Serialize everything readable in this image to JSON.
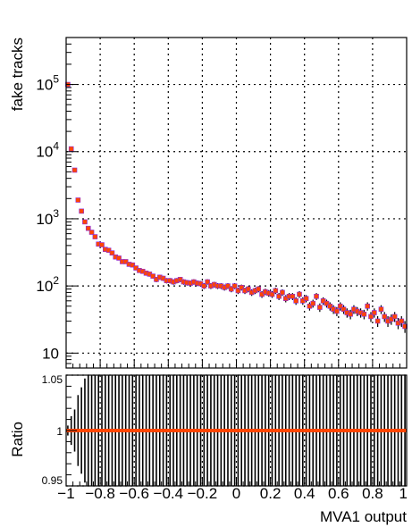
{
  "chart_data": [
    {
      "type": "scatter",
      "title": "",
      "ylabel": "fake tracks",
      "xlabel": "",
      "xlim": [
        -1,
        1
      ],
      "ylim": [
        6,
        500000
      ],
      "yscale": "log",
      "grid": true,
      "ytick_labels": [
        {
          "value": 10,
          "base": "10",
          "exp": ""
        },
        {
          "value": 100,
          "base": "10",
          "exp": "2"
        },
        {
          "value": 1000,
          "base": "10",
          "exp": "3"
        },
        {
          "value": 10000,
          "base": "10",
          "exp": "4"
        },
        {
          "value": 100000,
          "base": "10",
          "exp": "5"
        }
      ],
      "series": [
        {
          "color_marker": "#ff4500",
          "color_reference": "#8a2be2",
          "x": [
            -0.99,
            -0.97,
            -0.95,
            -0.93,
            -0.91,
            -0.89,
            -0.87,
            -0.85,
            -0.83,
            -0.81,
            -0.79,
            -0.77,
            -0.75,
            -0.73,
            -0.71,
            -0.69,
            -0.67,
            -0.65,
            -0.63,
            -0.61,
            -0.59,
            -0.57,
            -0.55,
            -0.53,
            -0.51,
            -0.49,
            -0.47,
            -0.45,
            -0.43,
            -0.41,
            -0.39,
            -0.37,
            -0.35,
            -0.33,
            -0.31,
            -0.29,
            -0.27,
            -0.25,
            -0.23,
            -0.21,
            -0.19,
            -0.17,
            -0.15,
            -0.13,
            -0.11,
            -0.09,
            -0.07,
            -0.05,
            -0.03,
            -0.01,
            0.01,
            0.03,
            0.05,
            0.07,
            0.09,
            0.11,
            0.13,
            0.15,
            0.17,
            0.19,
            0.21,
            0.23,
            0.25,
            0.27,
            0.29,
            0.31,
            0.33,
            0.35,
            0.37,
            0.39,
            0.41,
            0.43,
            0.45,
            0.47,
            0.49,
            0.51,
            0.53,
            0.55,
            0.57,
            0.59,
            0.61,
            0.63,
            0.65,
            0.67,
            0.69,
            0.71,
            0.73,
            0.75,
            0.77,
            0.79,
            0.81,
            0.83,
            0.85,
            0.87,
            0.89,
            0.91,
            0.93,
            0.95,
            0.97,
            0.99
          ],
          "y": [
            100000,
            11000,
            5300,
            1900,
            1300,
            900,
            720,
            630,
            540,
            420,
            410,
            350,
            340,
            310,
            270,
            260,
            230,
            230,
            210,
            205,
            185,
            170,
            165,
            155,
            150,
            140,
            125,
            135,
            130,
            120,
            120,
            115,
            120,
            125,
            115,
            112,
            110,
            115,
            110,
            108,
            100,
            115,
            100,
            105,
            100,
            100,
            95,
            100,
            90,
            100,
            85,
            95,
            85,
            90,
            80,
            85,
            90,
            75,
            82,
            78,
            75,
            85,
            70,
            80,
            65,
            70,
            70,
            60,
            75,
            60,
            65,
            50,
            55,
            70,
            48,
            60,
            55,
            50,
            45,
            42,
            50,
            45,
            40,
            38,
            45,
            42,
            40,
            38,
            50,
            35,
            40,
            30,
            45,
            35,
            30,
            32,
            35,
            28,
            30,
            25
          ]
        }
      ]
    },
    {
      "type": "scatter",
      "title": "",
      "ylabel": "Ratio",
      "xlabel": "MVA1 output",
      "xlim": [
        -1,
        1
      ],
      "ylim": [
        0.95,
        1.05
      ],
      "grid": true,
      "ytick_labels": [
        "0.95",
        "1",
        "1.05"
      ],
      "xtick_labels": [
        "−1",
        "−0.8",
        "−0.6",
        "−0.4",
        "−0.2",
        "0",
        "0.2",
        "0.4",
        "0.6",
        "0.8",
        "1"
      ],
      "series": [
        {
          "color": "#ff4500",
          "x": [
            -0.99,
            -0.97,
            -0.95,
            -0.93,
            -0.91,
            -0.89,
            -0.87,
            -0.85,
            -0.83,
            -0.81,
            -0.79,
            -0.77,
            -0.75,
            -0.73,
            -0.71,
            -0.69,
            -0.67,
            -0.65,
            -0.63,
            -0.61,
            -0.59,
            -0.57,
            -0.55,
            -0.53,
            -0.51,
            -0.49,
            -0.47,
            -0.45,
            -0.43,
            -0.41,
            -0.39,
            -0.37,
            -0.35,
            -0.33,
            -0.31,
            -0.29,
            -0.27,
            -0.25,
            -0.23,
            -0.21,
            -0.19,
            -0.17,
            -0.15,
            -0.13,
            -0.11,
            -0.09,
            -0.07,
            -0.05,
            -0.03,
            -0.01,
            0.01,
            0.03,
            0.05,
            0.07,
            0.09,
            0.11,
            0.13,
            0.15,
            0.17,
            0.19,
            0.21,
            0.23,
            0.25,
            0.27,
            0.29,
            0.31,
            0.33,
            0.35,
            0.37,
            0.39,
            0.41,
            0.43,
            0.45,
            0.47,
            0.49,
            0.51,
            0.53,
            0.55,
            0.57,
            0.59,
            0.61,
            0.63,
            0.65,
            0.67,
            0.69,
            0.71,
            0.73,
            0.75,
            0.77,
            0.79,
            0.81,
            0.83,
            0.85,
            0.87,
            0.89,
            0.91,
            0.93,
            0.95,
            0.97,
            0.99
          ],
          "y_constant": 1.0,
          "errors": [
            0.0045,
            0.013,
            0.019,
            0.032,
            0.039,
            0.047,
            0.053,
            0.056,
            0.061,
            0.069,
            0.07,
            0.076,
            0.077,
            0.08,
            0.086,
            0.088,
            0.093,
            0.093,
            0.098,
            0.099,
            0.104,
            0.108,
            0.11,
            0.114,
            0.115,
            0.12,
            0.126,
            0.122,
            0.124,
            0.129,
            0.129,
            0.132,
            0.129,
            0.126,
            0.132,
            0.134,
            0.135,
            0.132,
            0.135,
            0.136,
            0.141,
            0.132,
            0.141,
            0.138,
            0.141,
            0.141,
            0.145,
            0.141,
            0.149,
            0.141,
            0.153,
            0.145,
            0.153,
            0.149,
            0.158,
            0.153,
            0.149,
            0.163,
            0.156,
            0.16,
            0.163,
            0.153,
            0.169,
            0.158,
            0.175,
            0.169,
            0.169,
            0.183,
            0.163,
            0.183,
            0.175,
            0.2,
            0.191,
            0.169,
            0.204,
            0.183,
            0.191,
            0.2,
            0.211,
            0.218,
            0.2,
            0.211,
            0.224,
            0.229,
            0.211,
            0.218,
            0.224,
            0.229,
            0.2,
            0.239,
            0.224,
            0.258,
            0.211,
            0.239,
            0.258,
            0.25,
            0.239,
            0.267,
            0.258,
            0.283
          ]
        }
      ]
    }
  ]
}
